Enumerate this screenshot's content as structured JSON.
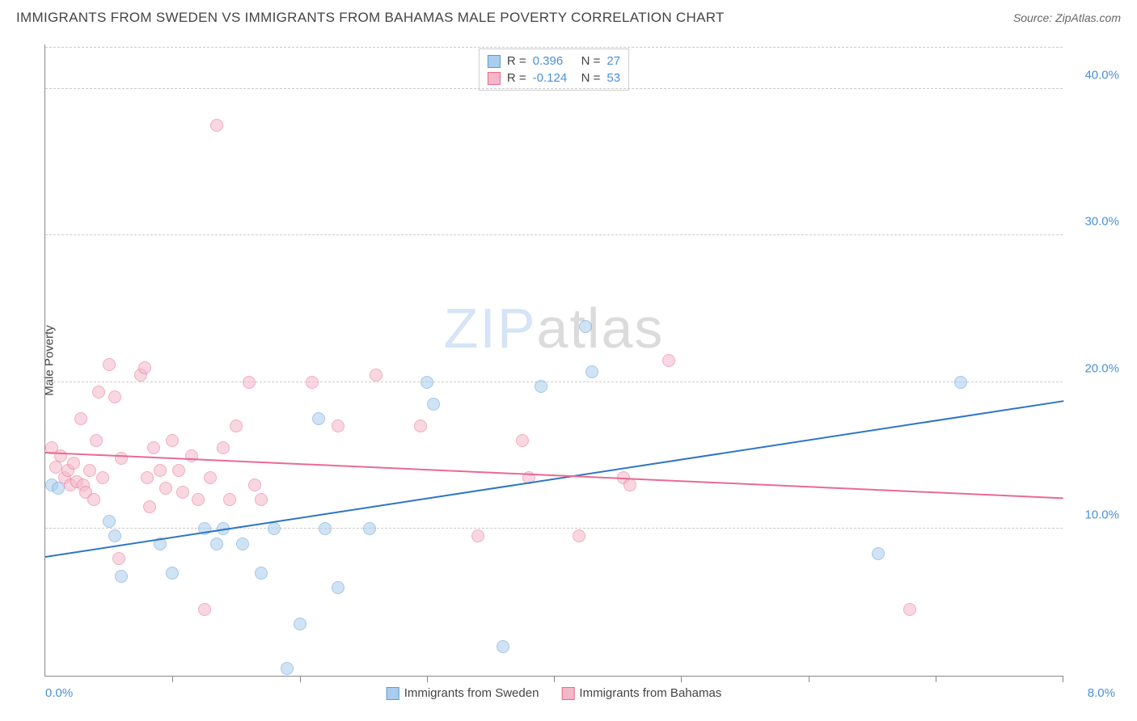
{
  "header": {
    "title": "IMMIGRANTS FROM SWEDEN VS IMMIGRANTS FROM BAHAMAS MALE POVERTY CORRELATION CHART",
    "source": "Source: ZipAtlas.com"
  },
  "chart": {
    "type": "scatter",
    "y_axis_label": "Male Poverty",
    "xlim": [
      0,
      8
    ],
    "ylim": [
      0,
      43
    ],
    "x_ticks_labeled": {
      "min": "0.0%",
      "max": "8.0%"
    },
    "x_tick_positions": [
      1,
      2,
      3,
      4,
      5,
      6,
      7,
      8
    ],
    "y_gridlines": [
      10,
      20,
      30,
      40,
      42.8
    ],
    "y_tick_labels": {
      "10": "10.0%",
      "20": "20.0%",
      "30": "30.0%",
      "40": "40.0%"
    },
    "background_color": "#ffffff",
    "grid_color": "#cccccc",
    "axis_color": "#888888",
    "tick_label_color": "#4a90d9",
    "series": [
      {
        "name": "Immigrants from Sweden",
        "fill": "#a9cdee",
        "stroke": "#5b9bd5",
        "fill_opacity": 0.55,
        "marker_radius": 8,
        "trend": {
          "color": "#2e75c6",
          "y_at_xmin": 8.2,
          "y_at_xmax": 18.8
        },
        "stats": {
          "R": "0.396",
          "N": "27"
        },
        "points": [
          [
            0.05,
            13.0
          ],
          [
            0.1,
            12.8
          ],
          [
            0.5,
            10.5
          ],
          [
            0.55,
            9.5
          ],
          [
            0.6,
            6.8
          ],
          [
            0.9,
            9.0
          ],
          [
            1.0,
            7.0
          ],
          [
            1.25,
            10.0
          ],
          [
            1.35,
            9.0
          ],
          [
            1.4,
            10.0
          ],
          [
            1.55,
            9.0
          ],
          [
            1.7,
            7.0
          ],
          [
            1.8,
            10.0
          ],
          [
            1.9,
            0.5
          ],
          [
            2.0,
            3.5
          ],
          [
            2.15,
            17.5
          ],
          [
            2.2,
            10.0
          ],
          [
            2.3,
            6.0
          ],
          [
            2.55,
            10.0
          ],
          [
            3.0,
            20.0
          ],
          [
            3.05,
            18.5
          ],
          [
            3.6,
            2.0
          ],
          [
            3.9,
            19.7
          ],
          [
            4.25,
            23.8
          ],
          [
            4.3,
            20.7
          ],
          [
            6.55,
            8.3
          ],
          [
            7.2,
            20.0
          ]
        ]
      },
      {
        "name": "Immigrants from Bahamas",
        "fill": "#f4b7c7",
        "stroke": "#e86a92",
        "fill_opacity": 0.55,
        "marker_radius": 8,
        "trend": {
          "color": "#e86a92",
          "y_at_xmin": 15.3,
          "y_at_xmax": 12.2
        },
        "stats": {
          "R": "-0.124",
          "N": "53"
        },
        "points": [
          [
            0.08,
            14.2
          ],
          [
            0.12,
            15.0
          ],
          [
            0.15,
            13.5
          ],
          [
            0.18,
            14.0
          ],
          [
            0.2,
            13.0
          ],
          [
            0.22,
            14.5
          ],
          [
            0.25,
            13.2
          ],
          [
            0.28,
            17.5
          ],
          [
            0.3,
            13.0
          ],
          [
            0.32,
            12.5
          ],
          [
            0.35,
            14.0
          ],
          [
            0.38,
            12.0
          ],
          [
            0.4,
            16.0
          ],
          [
            0.42,
            19.3
          ],
          [
            0.45,
            13.5
          ],
          [
            0.5,
            21.2
          ],
          [
            0.55,
            19.0
          ],
          [
            0.58,
            8.0
          ],
          [
            0.6,
            14.8
          ],
          [
            0.75,
            20.5
          ],
          [
            0.78,
            21.0
          ],
          [
            0.8,
            13.5
          ],
          [
            0.82,
            11.5
          ],
          [
            0.85,
            15.5
          ],
          [
            0.9,
            14.0
          ],
          [
            0.95,
            12.8
          ],
          [
            1.0,
            16.0
          ],
          [
            1.05,
            14.0
          ],
          [
            1.08,
            12.5
          ],
          [
            1.15,
            15.0
          ],
          [
            1.2,
            12.0
          ],
          [
            1.25,
            4.5
          ],
          [
            1.3,
            13.5
          ],
          [
            1.35,
            37.5
          ],
          [
            1.4,
            15.5
          ],
          [
            1.45,
            12.0
          ],
          [
            1.5,
            17.0
          ],
          [
            1.6,
            20.0
          ],
          [
            1.65,
            13.0
          ],
          [
            1.7,
            12.0
          ],
          [
            2.1,
            20.0
          ],
          [
            2.3,
            17.0
          ],
          [
            2.6,
            20.5
          ],
          [
            2.95,
            17.0
          ],
          [
            3.4,
            9.5
          ],
          [
            3.75,
            16.0
          ],
          [
            3.8,
            13.5
          ],
          [
            4.2,
            9.5
          ],
          [
            4.55,
            13.5
          ],
          [
            4.6,
            13.0
          ],
          [
            4.9,
            21.5
          ],
          [
            6.8,
            4.5
          ],
          [
            0.05,
            15.5
          ]
        ]
      }
    ],
    "legend_top": {
      "rows": [
        {
          "swatch_fill": "#a9cdee",
          "swatch_stroke": "#5b9bd5",
          "r_label": "R =",
          "r_value": "0.396",
          "n_label": "N =",
          "n_value": "27"
        },
        {
          "swatch_fill": "#f4b7c7",
          "swatch_stroke": "#e86a92",
          "r_label": "R =",
          "r_value": "-0.124",
          "n_label": "N =",
          "n_value": "53"
        }
      ]
    },
    "legend_bottom": [
      {
        "swatch_fill": "#a9cdee",
        "swatch_stroke": "#5b9bd5",
        "label": "Immigrants from Sweden"
      },
      {
        "swatch_fill": "#f4b7c7",
        "swatch_stroke": "#e86a92",
        "label": "Immigrants from Bahamas"
      }
    ],
    "watermark": {
      "part1": "ZIP",
      "part2": "atlas"
    }
  }
}
